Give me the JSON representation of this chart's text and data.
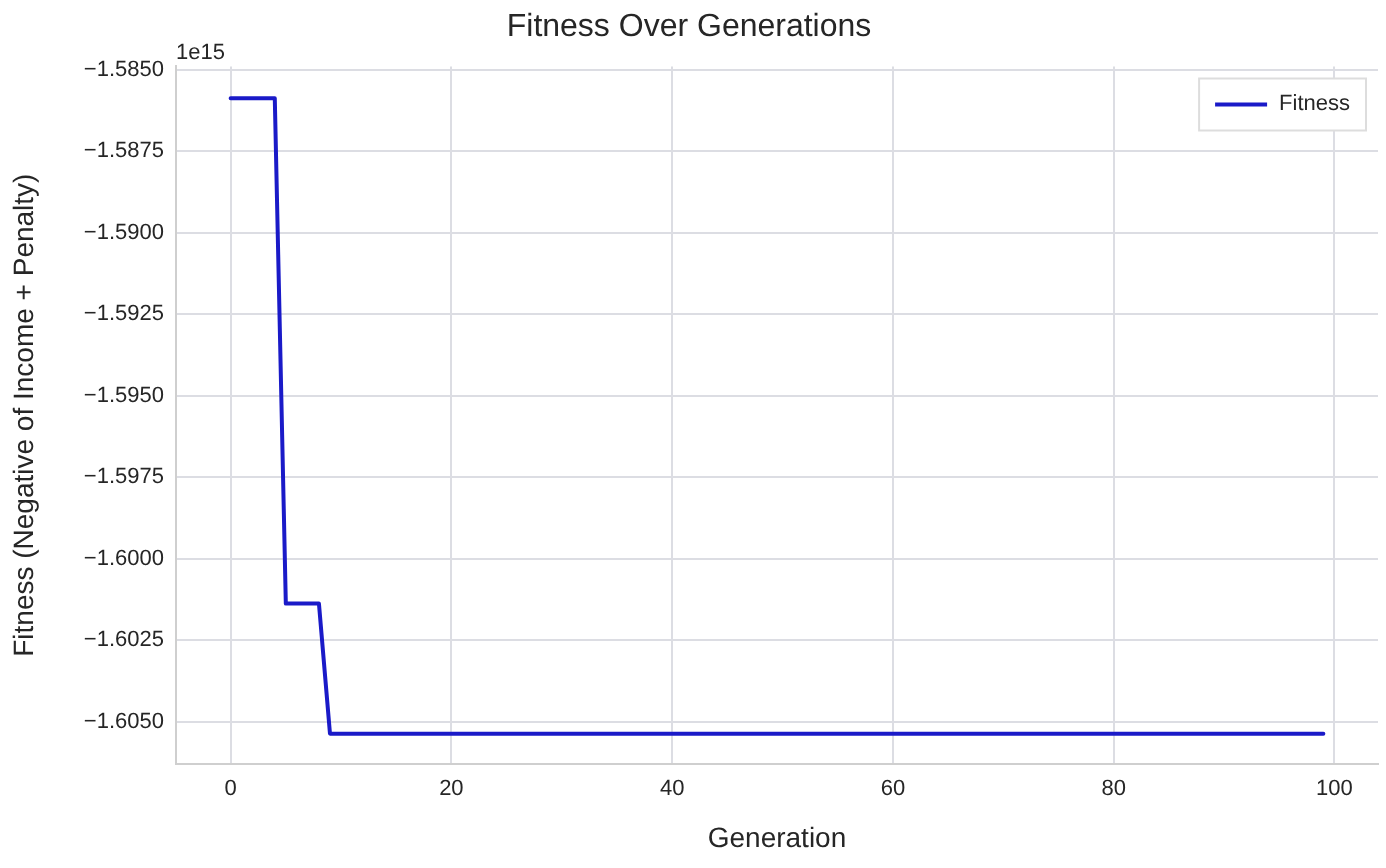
{
  "chart_data": {
    "type": "line",
    "title": "Fitness Over Generations",
    "xlabel": "Generation",
    "ylabel": "Fitness (Negative of Income + Penalty)",
    "annotations": [
      "1e15"
    ],
    "series": [
      {
        "name": "Fitness",
        "color": "#1a1ac8",
        "x": [
          0,
          4,
          5,
          8,
          9,
          99
        ],
        "values": [
          -1.58588,
          -1.58588,
          -1.60138,
          -1.60138,
          -1.60537,
          -1.60537
        ]
      }
    ],
    "xlim": [
      -4.95,
      103.95
    ],
    "xticks": [
      0,
      20,
      40,
      60,
      80,
      100
    ],
    "ylim": [
      -1.6063,
      -1.5849
    ],
    "yticks": [
      {
        "value": -1.605,
        "label": "−1.6050"
      },
      {
        "value": -1.6025,
        "label": "−1.6025"
      },
      {
        "value": -1.6,
        "label": "−1.6000"
      },
      {
        "value": -1.5975,
        "label": "−1.5975"
      },
      {
        "value": -1.595,
        "label": "−1.5950"
      },
      {
        "value": -1.5925,
        "label": "−1.5925"
      },
      {
        "value": -1.59,
        "label": "−1.5900"
      },
      {
        "value": -1.5875,
        "label": "−1.5875"
      },
      {
        "value": -1.585,
        "label": "−1.5850"
      }
    ],
    "grid": true,
    "legend": "top right",
    "marker": "none",
    "line_style": "solid"
  }
}
